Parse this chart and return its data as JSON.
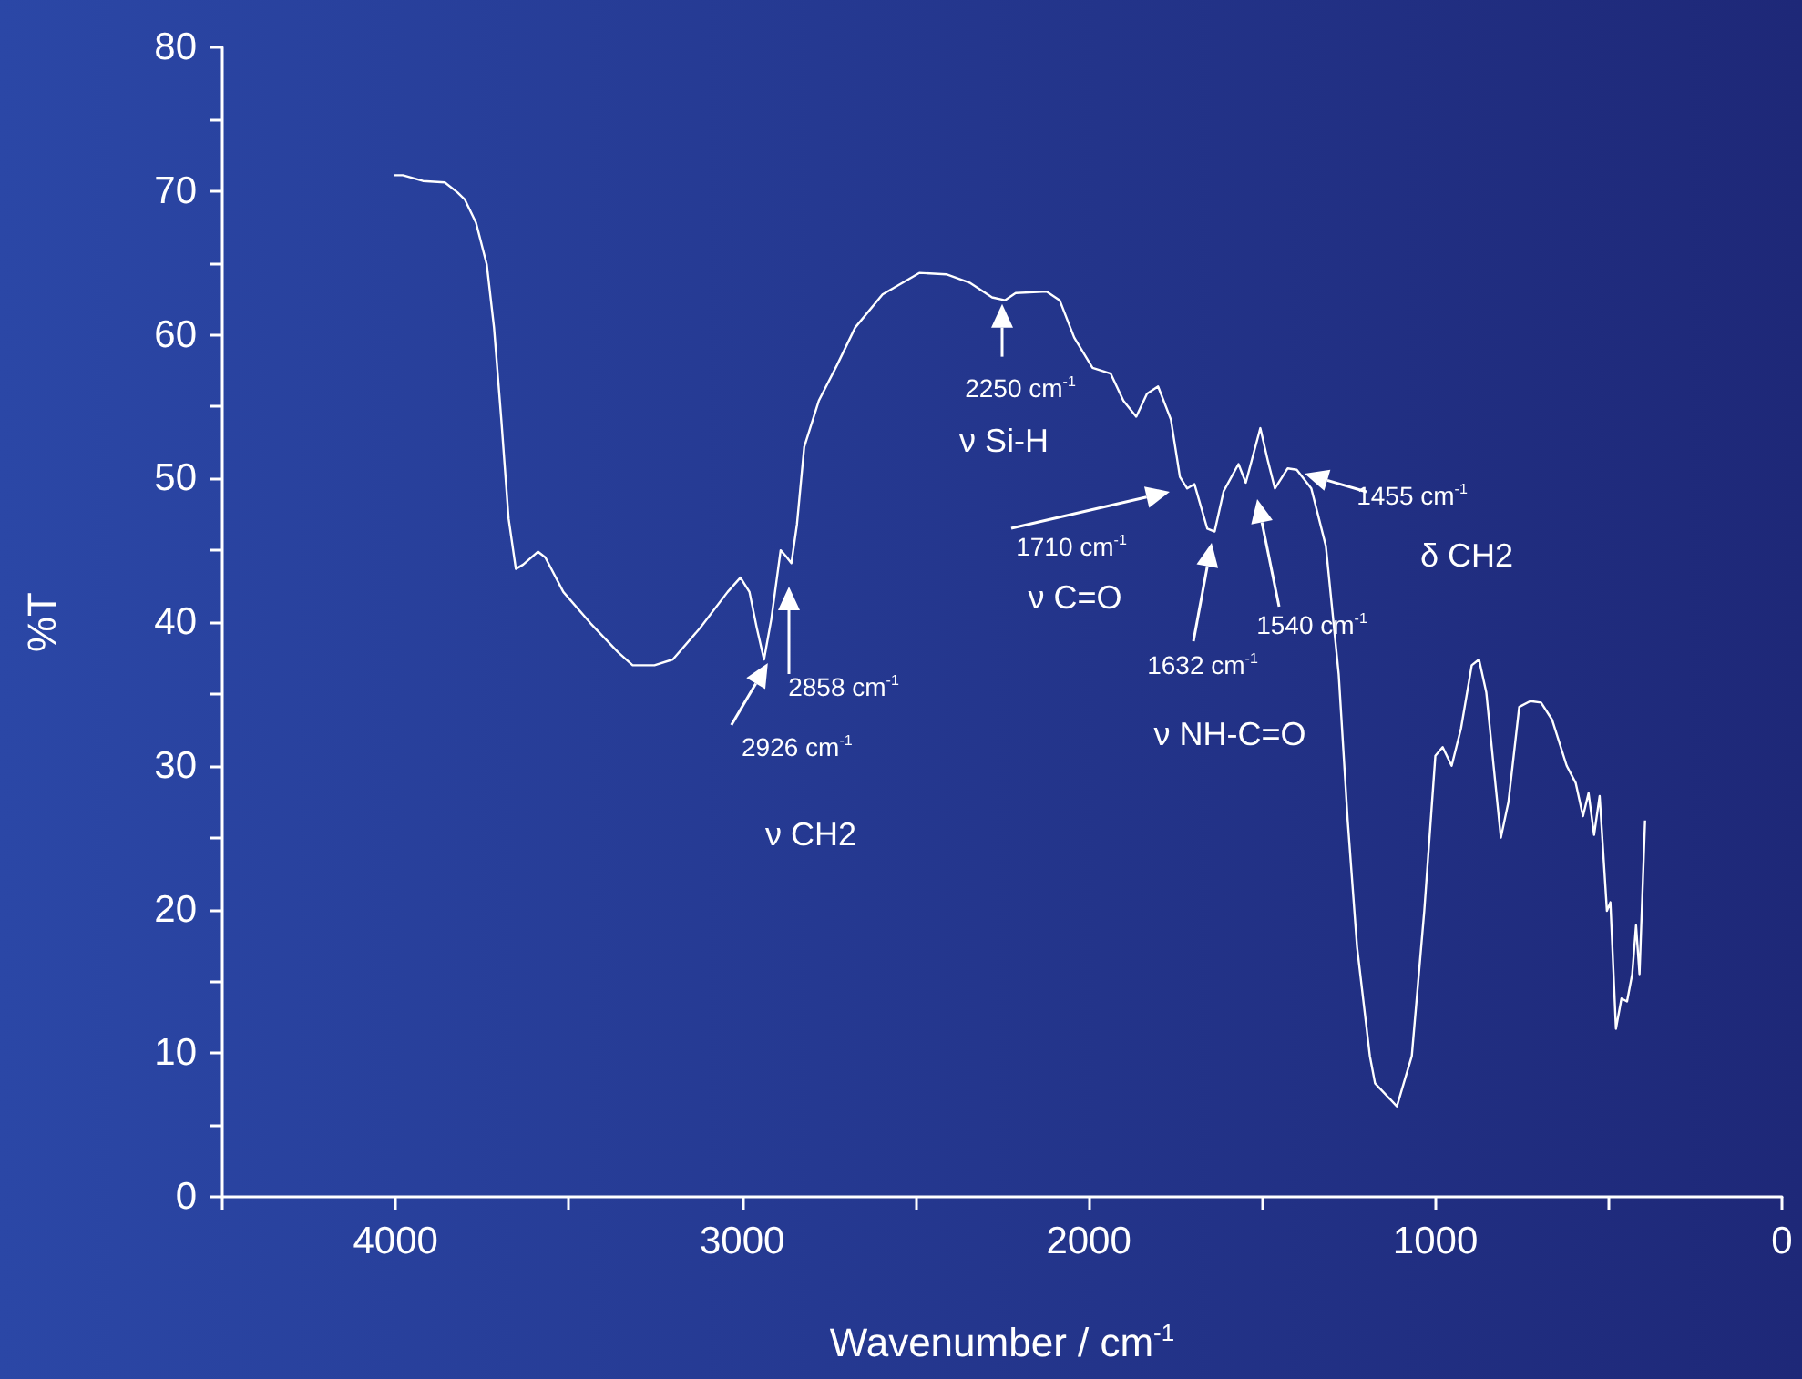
{
  "chart_data": {
    "type": "line",
    "xlabel": "Wavenumber / cm$^{-1}$",
    "ylabel": "%T",
    "xlim": [
      4500,
      0
    ],
    "xticks": [
      {
        "value": 4500,
        "label": null
      },
      4000,
      {
        "value": 3500,
        "label": null
      },
      3000,
      {
        "value": 2500,
        "label": null
      },
      2000,
      {
        "value": 1500,
        "label": null
      },
      1000,
      {
        "value": 500,
        "label": null
      },
      0
    ],
    "ylim": [
      0,
      80
    ],
    "yticks": [
      0,
      {
        "value": 5,
        "label": null
      },
      10,
      {
        "value": 15,
        "label": null
      },
      20,
      {
        "value": 25,
        "label": null
      },
      30,
      {
        "value": 35,
        "label": null
      },
      40,
      {
        "value": 45,
        "label": null
      },
      50,
      {
        "value": 55,
        "label": null
      },
      60,
      {
        "value": 65,
        "label": null
      },
      70,
      {
        "value": 75,
        "label": null
      },
      80
    ],
    "grid": false,
    "series": [
      {
        "color": "#ffffff",
        "x": [
          4005,
          3979,
          3921,
          3858,
          3821,
          3800,
          3768,
          3737,
          3716,
          3695,
          3674,
          3653,
          3632,
          3589,
          3568,
          3516,
          3437,
          3358,
          3316,
          3253,
          3200,
          3121,
          3042,
          3005,
          2979,
          2958,
          2937,
          2916,
          2889,
          2874,
          2858,
          2842,
          2821,
          2779,
          2726,
          2674,
          2595,
          2489,
          2411,
          2342,
          2279,
          2242,
          2211,
          2121,
          2084,
          2042,
          1989,
          1937,
          1900,
          1863,
          1832,
          1800,
          1763,
          1737,
          1716,
          1695,
          1658,
          1637,
          1611,
          1568,
          1547,
          1526,
          1505,
          1484,
          1463,
          1426,
          1400,
          1358,
          1316,
          1279,
          1253,
          1226,
          1189,
          1174,
          1111,
          1068,
          1032,
          1000,
          979,
          953,
          926,
          895,
          874,
          853,
          832,
          811,
          789,
          758,
          726,
          695,
          663,
          621,
          595,
          574,
          558,
          542,
          526,
          505,
          495,
          479,
          463,
          447,
          432,
          421,
          411,
          395
        ],
        "values": [
          71.1,
          71.1,
          70.7,
          70.6,
          69.9,
          69.4,
          67.8,
          64.9,
          60.5,
          54.1,
          47.2,
          43.7,
          44.0,
          44.9,
          44.5,
          42.1,
          39.9,
          37.9,
          37.0,
          37.0,
          37.4,
          39.6,
          42.1,
          43.1,
          42.1,
          39.6,
          37.4,
          40.2,
          45.0,
          44.6,
          44.1,
          46.8,
          52.2,
          55.4,
          57.9,
          60.5,
          62.8,
          64.3,
          64.2,
          63.6,
          62.6,
          62.4,
          62.9,
          63.0,
          62.4,
          59.8,
          57.7,
          57.3,
          55.4,
          54.3,
          55.9,
          56.4,
          54.1,
          50.1,
          49.3,
          49.6,
          46.5,
          46.3,
          49.1,
          51.0,
          49.7,
          51.6,
          53.5,
          51.3,
          49.3,
          50.7,
          50.6,
          49.3,
          45.3,
          36.4,
          26.2,
          17.4,
          9.8,
          7.9,
          6.3,
          9.8,
          19.9,
          30.7,
          31.3,
          30.0,
          32.6,
          37.0,
          37.4,
          35.1,
          30.0,
          25.0,
          27.5,
          34.1,
          34.5,
          34.4,
          33.2,
          30.0,
          28.8,
          26.5,
          28.1,
          25.2,
          27.9,
          19.9,
          20.5,
          11.7,
          13.8,
          13.6,
          15.5,
          18.9,
          15.5,
          26.2
        ]
      }
    ],
    "annotations": [
      {
        "text": "2926 cm$^{-1}$",
        "x": 2926,
        "y": 37.4
      },
      "2858 cm$^{-1}$",
      "ν CH2",
      {
        "text": "2250 cm$^{-1}$",
        "x": 2250,
        "y": 62.4
      },
      "ν Si-H",
      "1710 cm$^{-1}$",
      "ν C=O",
      "1632 cm$^{-1}$",
      "ν NH-C=O",
      "1540 cm$^{-1}$",
      "1455 cm$^{-1}$",
      "δ CH2"
    ]
  }
}
